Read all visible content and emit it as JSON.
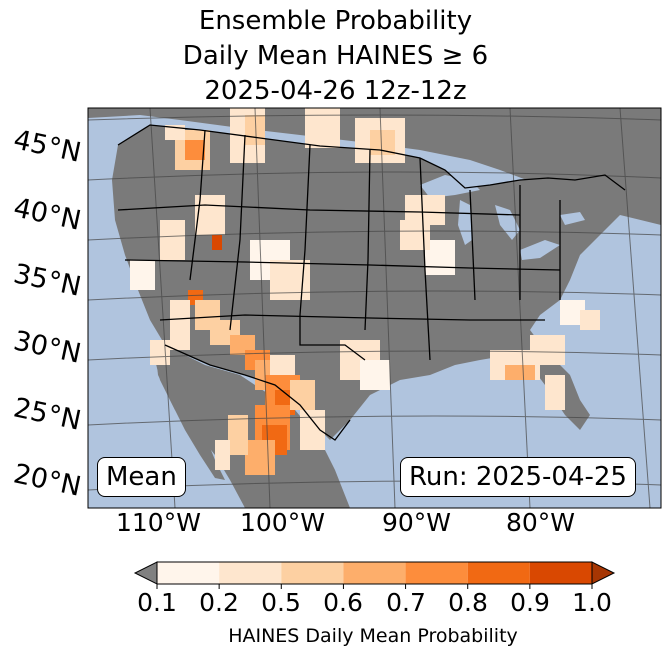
{
  "title": {
    "line1": "Ensemble Probability",
    "line2": "Daily Mean HAINES ≥ 6",
    "line3": "2025-04-26 12z-12z"
  },
  "map": {
    "ocean_color": "#b0c4de",
    "land_color": "#7a7a7a",
    "lat_labels": [
      "45°N",
      "40°N",
      "35°N",
      "30°N",
      "25°N",
      "20°N"
    ],
    "lon_labels": [
      "110°W",
      "100°W",
      "90°W",
      "80°W"
    ]
  },
  "badges": {
    "stat": "Mean",
    "run": "Run: 2025-04-25"
  },
  "colorbar": {
    "ticks": [
      "0.1",
      "0.2",
      "0.5",
      "0.6",
      "0.7",
      "0.8",
      "0.9",
      "1.0"
    ],
    "colors": [
      "#fff5eb",
      "#fee6ce",
      "#fdd0a2",
      "#fdae6b",
      "#fd8d3c",
      "#f16913",
      "#d94801",
      "#a63603"
    ],
    "under_color": "#808080",
    "label": "HAINES Daily Mean Probability"
  }
}
